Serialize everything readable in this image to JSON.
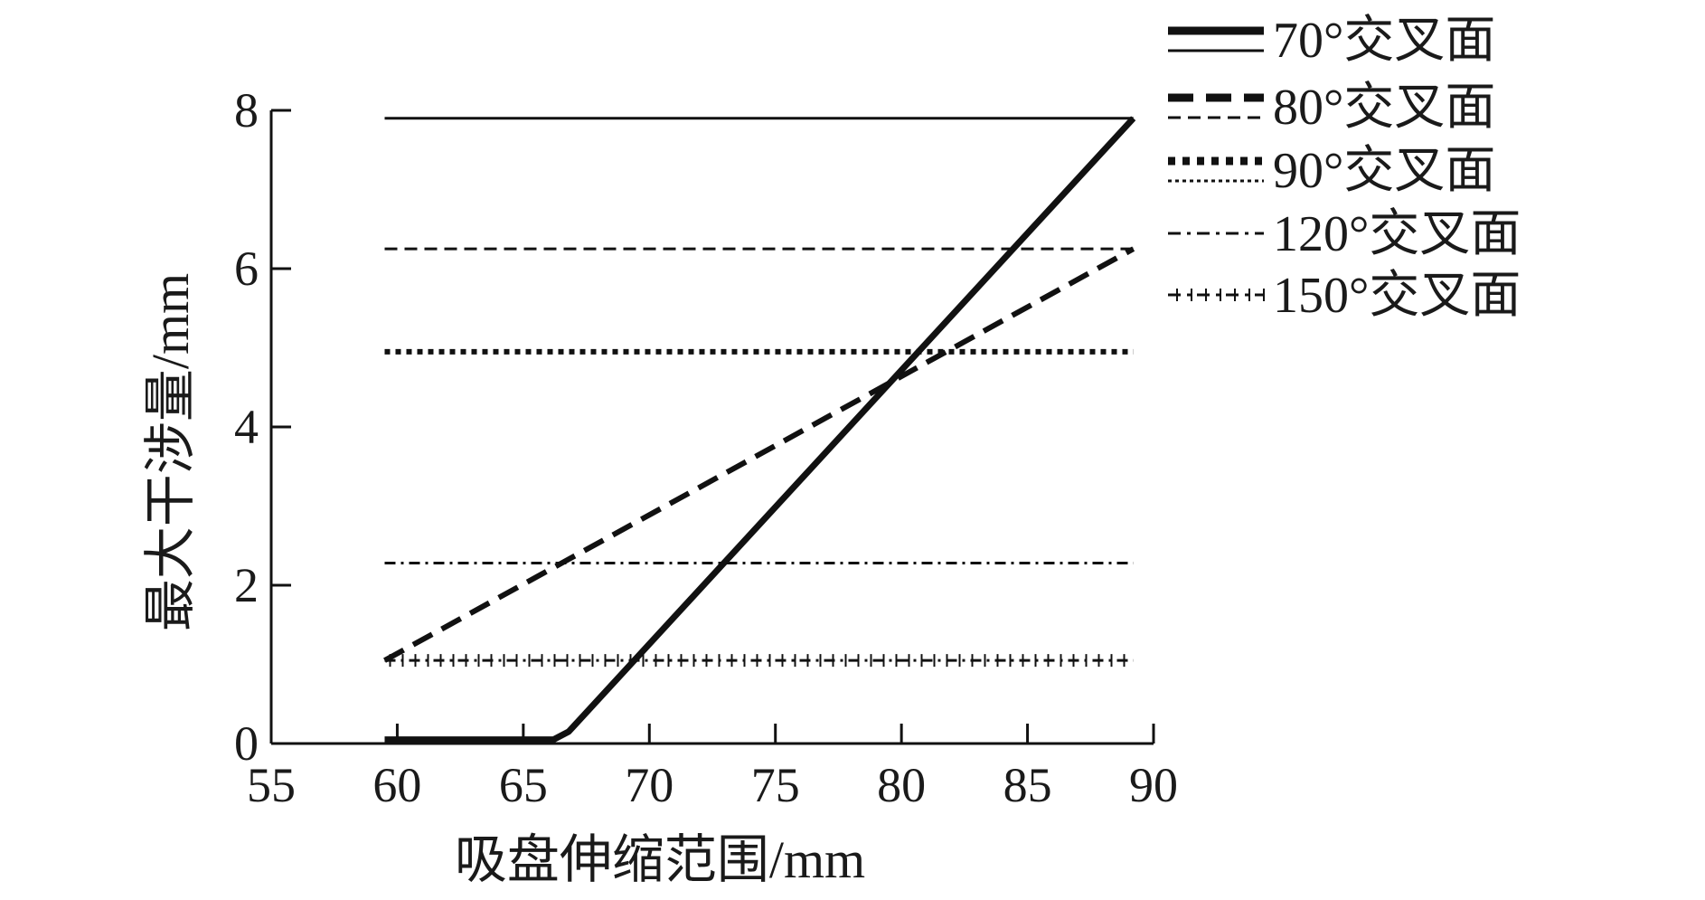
{
  "chart_data": {
    "type": "line",
    "xlabel": "吸盘伸缩范围/mm",
    "ylabel": "最大干涉量/mm",
    "xlim": [
      55,
      90
    ],
    "ylim": [
      0,
      8
    ],
    "x_ticks": [
      "55",
      "60",
      "65",
      "70",
      "75",
      "80",
      "85",
      "90"
    ],
    "y_ticks": [
      "0",
      "2",
      "4",
      "6",
      "8"
    ],
    "grid": false,
    "legend_position": "top-right, outside plot",
    "series": [
      {
        "name": "70°交叉面",
        "style": "solid",
        "color": "#111111",
        "points": [
          [
            59.5,
            0.05
          ],
          [
            66.2,
            0.05
          ],
          [
            66.8,
            0.15
          ],
          [
            89.2,
            7.9
          ]
        ],
        "reference_level": 7.9
      },
      {
        "name": "80°交叉面",
        "style": "dashed",
        "color": "#111111",
        "points": [
          [
            59.5,
            1.05
          ],
          [
            89.2,
            6.25
          ]
        ],
        "reference_level": 6.25
      },
      {
        "name": "90°交叉面",
        "style": "dotted",
        "color": "#111111",
        "points": [
          [
            59.5,
            4.95
          ],
          [
            89.2,
            4.95
          ]
        ]
      },
      {
        "name": "120°交叉面",
        "style": "dash-dot",
        "color": "#111111",
        "points": [
          [
            59.5,
            2.28
          ],
          [
            89.2,
            2.28
          ]
        ]
      },
      {
        "name": "150°交叉面",
        "style": "dash-plus",
        "color": "#111111",
        "points": [
          [
            59.5,
            1.05
          ],
          [
            89.2,
            1.05
          ]
        ]
      }
    ]
  }
}
